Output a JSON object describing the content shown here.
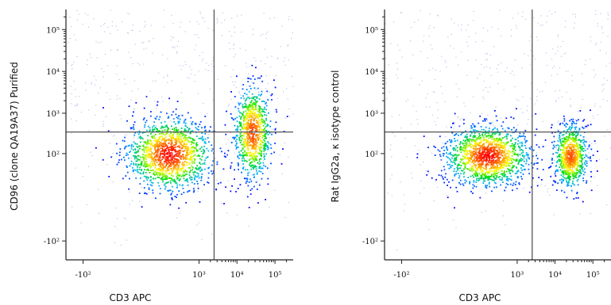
{
  "chart_data": [
    {
      "type": "scatter",
      "subtype": "flow-cytometry-density-dot-plot",
      "title": "",
      "xlabel": "CD3 APC",
      "ylabel": "CD96 (clone QA19A37) Purified",
      "x_scale": "biexponential",
      "y_scale": "biexponential",
      "xlim": [
        -300,
        300000
      ],
      "ylim": [
        -300,
        300000
      ],
      "x_ticks": [
        {
          "value": -100,
          "label": "-10²"
        },
        {
          "value": 1000,
          "label": "10³"
        },
        {
          "value": 10000,
          "label": "10⁴"
        },
        {
          "value": 100000,
          "label": "10⁵"
        }
      ],
      "y_ticks": [
        {
          "value": -100,
          "label": "-10²"
        },
        {
          "value": 100,
          "label": "10²"
        },
        {
          "value": 1000,
          "label": "10³"
        },
        {
          "value": 10000,
          "label": "10⁴"
        },
        {
          "value": 100000,
          "label": "10⁵"
        }
      ],
      "quadrant_gate": {
        "x": 2500,
        "y": 350
      },
      "populations": [
        {
          "x_center": 150,
          "y_center": 100,
          "x_spread": 0.55,
          "y_spread": 0.42,
          "weight": 1.0
        },
        {
          "x_center": 25000,
          "y_center": 350,
          "x_spread": 0.24,
          "y_spread": 0.55,
          "weight": 0.6
        }
      ],
      "color_scale": [
        "#0000ff",
        "#00b4ff",
        "#00e000",
        "#ffff00",
        "#ff8000",
        "#ff0000"
      ]
    },
    {
      "type": "scatter",
      "subtype": "flow-cytometry-density-dot-plot",
      "title": "",
      "xlabel": "CD3 APC",
      "ylabel": "Rat IgG2a, κ isotype control",
      "x_scale": "biexponential",
      "y_scale": "biexponential",
      "xlim": [
        -300,
        300000
      ],
      "ylim": [
        -300,
        300000
      ],
      "x_ticks": [
        {
          "value": -100,
          "label": "-10²"
        },
        {
          "value": 1000,
          "label": "10³"
        },
        {
          "value": 10000,
          "label": "10⁴"
        },
        {
          "value": 100000,
          "label": "10⁵"
        }
      ],
      "y_ticks": [
        {
          "value": -100,
          "label": "-10²"
        },
        {
          "value": 100,
          "label": "10²"
        },
        {
          "value": 1000,
          "label": "10³"
        },
        {
          "value": 10000,
          "label": "10⁴"
        },
        {
          "value": 100000,
          "label": "10⁵"
        }
      ],
      "quadrant_gate": {
        "x": 2500,
        "y": 350
      },
      "populations": [
        {
          "x_center": 150,
          "y_center": 90,
          "x_spread": 0.55,
          "y_spread": 0.35,
          "weight": 1.0
        },
        {
          "x_center": 25000,
          "y_center": 90,
          "x_spread": 0.22,
          "y_spread": 0.38,
          "weight": 0.55
        }
      ],
      "color_scale": [
        "#0000ff",
        "#00b4ff",
        "#00e000",
        "#ffff00",
        "#ff8000",
        "#ff0000"
      ]
    }
  ]
}
